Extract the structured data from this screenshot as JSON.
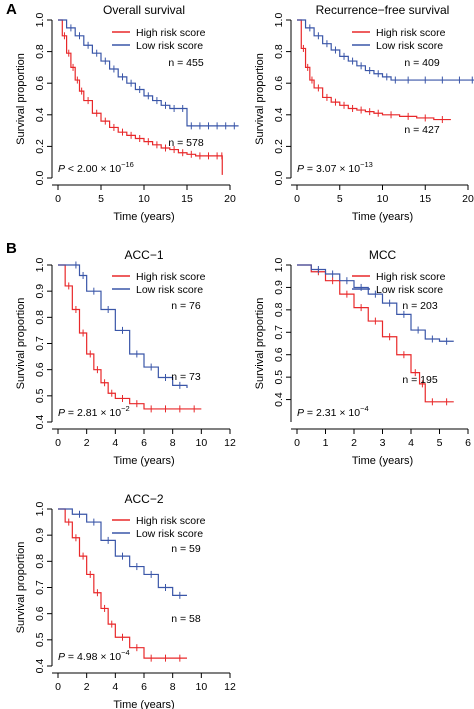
{
  "colors": {
    "high": "#e8282a",
    "low": "#3a56a8",
    "axis": "#000000"
  },
  "panel_labels": [
    "A",
    "B"
  ],
  "chart_data": [
    {
      "type": "line",
      "title": "Overall survival",
      "xlabel": "Time (years)",
      "ylabel": "Survival proportion",
      "xlim": [
        0,
        20
      ],
      "ylim": [
        0,
        1
      ],
      "xticks": [
        "0",
        "5",
        "10",
        "15",
        "20"
      ],
      "yticks": [
        "0.0",
        "0.2",
        "0.4",
        "0.6",
        "0.8",
        "1.0"
      ],
      "legend": [
        "High risk score",
        "Low risk score"
      ],
      "legend_position": "top-right",
      "p_value": {
        "prefix": "P < ",
        "mantissa": "2.00",
        "exponent": "−16"
      },
      "annotations": [
        "n = 455",
        "n = 578"
      ],
      "series": [
        {
          "name": "High risk score",
          "color": "high",
          "x": [
            0,
            0.5,
            1,
            1.5,
            2,
            2.5,
            3,
            4,
            5,
            6,
            7,
            8,
            9,
            10,
            11,
            12,
            13,
            14,
            15,
            16,
            17,
            18,
            19,
            19.1
          ],
          "y": [
            1,
            0.9,
            0.79,
            0.7,
            0.62,
            0.55,
            0.49,
            0.41,
            0.36,
            0.32,
            0.29,
            0.27,
            0.25,
            0.23,
            0.21,
            0.19,
            0.18,
            0.16,
            0.15,
            0.14,
            0.14,
            0.14,
            0.14,
            0.02
          ]
        },
        {
          "name": "Low risk score",
          "color": "low",
          "x": [
            0,
            1,
            2,
            3,
            4,
            5,
            6,
            7,
            8,
            9,
            10,
            11,
            12,
            13,
            14,
            15,
            16,
            17,
            18,
            19,
            20,
            21
          ],
          "y": [
            1,
            0.95,
            0.9,
            0.84,
            0.79,
            0.74,
            0.69,
            0.64,
            0.6,
            0.56,
            0.52,
            0.49,
            0.46,
            0.44,
            0.44,
            0.33,
            0.33,
            0.33,
            0.33,
            0.33,
            0.33,
            0.33
          ]
        }
      ]
    },
    {
      "type": "line",
      "title": "Recurrence−free survival",
      "xlabel": "Time (years)",
      "ylabel": "Survival proportion",
      "xlim": [
        0,
        20
      ],
      "ylim": [
        0,
        1
      ],
      "xticks": [
        "0",
        "5",
        "10",
        "15",
        "20"
      ],
      "yticks": [
        "0.0",
        "0.2",
        "0.4",
        "0.6",
        "0.8",
        "1.0"
      ],
      "legend": [
        "High risk score",
        "Low risk score"
      ],
      "legend_position": "top-right",
      "p_value": {
        "prefix": "P = ",
        "mantissa": "3.07",
        "exponent": "−13"
      },
      "annotations": [
        "n = 409",
        "n = 427"
      ],
      "series": [
        {
          "name": "High risk score",
          "color": "high",
          "x": [
            0,
            0.5,
            1,
            1.5,
            2,
            3,
            4,
            5,
            6,
            7,
            8,
            9,
            10,
            12,
            14,
            16,
            18
          ],
          "y": [
            1,
            0.82,
            0.7,
            0.62,
            0.57,
            0.51,
            0.48,
            0.46,
            0.44,
            0.43,
            0.42,
            0.41,
            0.4,
            0.39,
            0.38,
            0.37,
            0.37
          ]
        },
        {
          "name": "Low risk score",
          "color": "low",
          "x": [
            0,
            1,
            2,
            3,
            4,
            5,
            6,
            7,
            8,
            9,
            10,
            11,
            12,
            14,
            16,
            18,
            20,
            21
          ],
          "y": [
            1,
            0.95,
            0.9,
            0.85,
            0.81,
            0.77,
            0.74,
            0.71,
            0.68,
            0.66,
            0.64,
            0.62,
            0.62,
            0.62,
            0.62,
            0.62,
            0.62,
            0.62
          ]
        }
      ]
    },
    {
      "type": "line",
      "title": "ACC−1",
      "xlabel": "Time (years)",
      "ylabel": "Survival proportion",
      "xlim": [
        0,
        12
      ],
      "ylim": [
        0.4,
        1
      ],
      "xticks": [
        "0",
        "2",
        "4",
        "6",
        "8",
        "10",
        "12"
      ],
      "yticks": [
        "0.4",
        "0.5",
        "0.6",
        "0.7",
        "0.8",
        "0.9",
        "1.0"
      ],
      "legend": [
        "High risk score",
        "Low risk score"
      ],
      "legend_position": "top-right",
      "p_value": {
        "prefix": "P = ",
        "mantissa": "2.81",
        "exponent": "−2"
      },
      "annotations": [
        "n = 76",
        "n = 73"
      ],
      "series": [
        {
          "name": "High risk score",
          "color": "high",
          "x": [
            0,
            0.5,
            1,
            1.5,
            2,
            2.5,
            3,
            3.5,
            4,
            5,
            6,
            7,
            8,
            9,
            10
          ],
          "y": [
            1,
            0.92,
            0.83,
            0.74,
            0.66,
            0.6,
            0.55,
            0.51,
            0.49,
            0.47,
            0.45,
            0.45,
            0.45,
            0.45,
            0.45
          ]
        },
        {
          "name": "Low risk score",
          "color": "low",
          "x": [
            0,
            1,
            1.5,
            2,
            3,
            4,
            5,
            6,
            7,
            8,
            9
          ],
          "y": [
            1,
            1,
            0.96,
            0.9,
            0.83,
            0.75,
            0.66,
            0.61,
            0.57,
            0.54,
            0.53
          ]
        }
      ]
    },
    {
      "type": "line",
      "title": "MCC",
      "xlabel": "Time (years)",
      "ylabel": "Survival proportion",
      "xlim": [
        0,
        6
      ],
      "ylim": [
        0.3,
        1
      ],
      "xticks": [
        "0",
        "1",
        "2",
        "3",
        "4",
        "5",
        "6"
      ],
      "yticks": [
        "0.4",
        "0.5",
        "0.6",
        "0.7",
        "0.8",
        "0.9",
        "1.0"
      ],
      "legend": [
        "High risk score",
        "Low risk score"
      ],
      "legend_position": "top-right",
      "p_value": {
        "prefix": "P = ",
        "mantissa": "2.31",
        "exponent": "−4"
      },
      "annotations": [
        "n = 203",
        "n = 195"
      ],
      "series": [
        {
          "name": "High risk score",
          "color": "high",
          "x": [
            0,
            0.5,
            1,
            1.5,
            2,
            2.5,
            3,
            3.5,
            4,
            4.3,
            4.5,
            5,
            5.5
          ],
          "y": [
            1,
            0.97,
            0.93,
            0.87,
            0.81,
            0.75,
            0.68,
            0.6,
            0.52,
            0.47,
            0.39,
            0.39,
            0.39
          ]
        },
        {
          "name": "Low risk score",
          "color": "low",
          "x": [
            0,
            0.5,
            1,
            1.5,
            2,
            2.5,
            3,
            3.5,
            4,
            4.5,
            5,
            5.5
          ],
          "y": [
            1,
            0.98,
            0.96,
            0.93,
            0.9,
            0.87,
            0.83,
            0.78,
            0.71,
            0.67,
            0.66,
            0.66
          ]
        }
      ]
    },
    {
      "type": "line",
      "title": "ACC−2",
      "xlabel": "Time (years)",
      "ylabel": "Survival proportion",
      "xlim": [
        0,
        12
      ],
      "ylim": [
        0.4,
        1
      ],
      "xticks": [
        "0",
        "2",
        "4",
        "6",
        "8",
        "10",
        "12"
      ],
      "yticks": [
        "0.4",
        "0.5",
        "0.6",
        "0.7",
        "0.8",
        "0.9",
        "1.0"
      ],
      "legend": [
        "High risk score",
        "Low risk score"
      ],
      "legend_position": "top-right",
      "p_value": {
        "prefix": "P = ",
        "mantissa": "4.98",
        "exponent": "−4"
      },
      "annotations": [
        "n = 59",
        "n = 58"
      ],
      "series": [
        {
          "name": "High risk score",
          "color": "high",
          "x": [
            0,
            0.5,
            1,
            1.5,
            2,
            2.5,
            3,
            3.5,
            4,
            5,
            6,
            7,
            8,
            9
          ],
          "y": [
            1,
            0.95,
            0.89,
            0.82,
            0.75,
            0.68,
            0.62,
            0.56,
            0.51,
            0.47,
            0.43,
            0.43,
            0.43,
            0.43
          ]
        },
        {
          "name": "Low risk score",
          "color": "low",
          "x": [
            0,
            1,
            2,
            3,
            4,
            5,
            6,
            7,
            8,
            9
          ],
          "y": [
            1,
            0.98,
            0.95,
            0.88,
            0.82,
            0.78,
            0.75,
            0.7,
            0.67,
            0.67
          ]
        }
      ]
    }
  ]
}
